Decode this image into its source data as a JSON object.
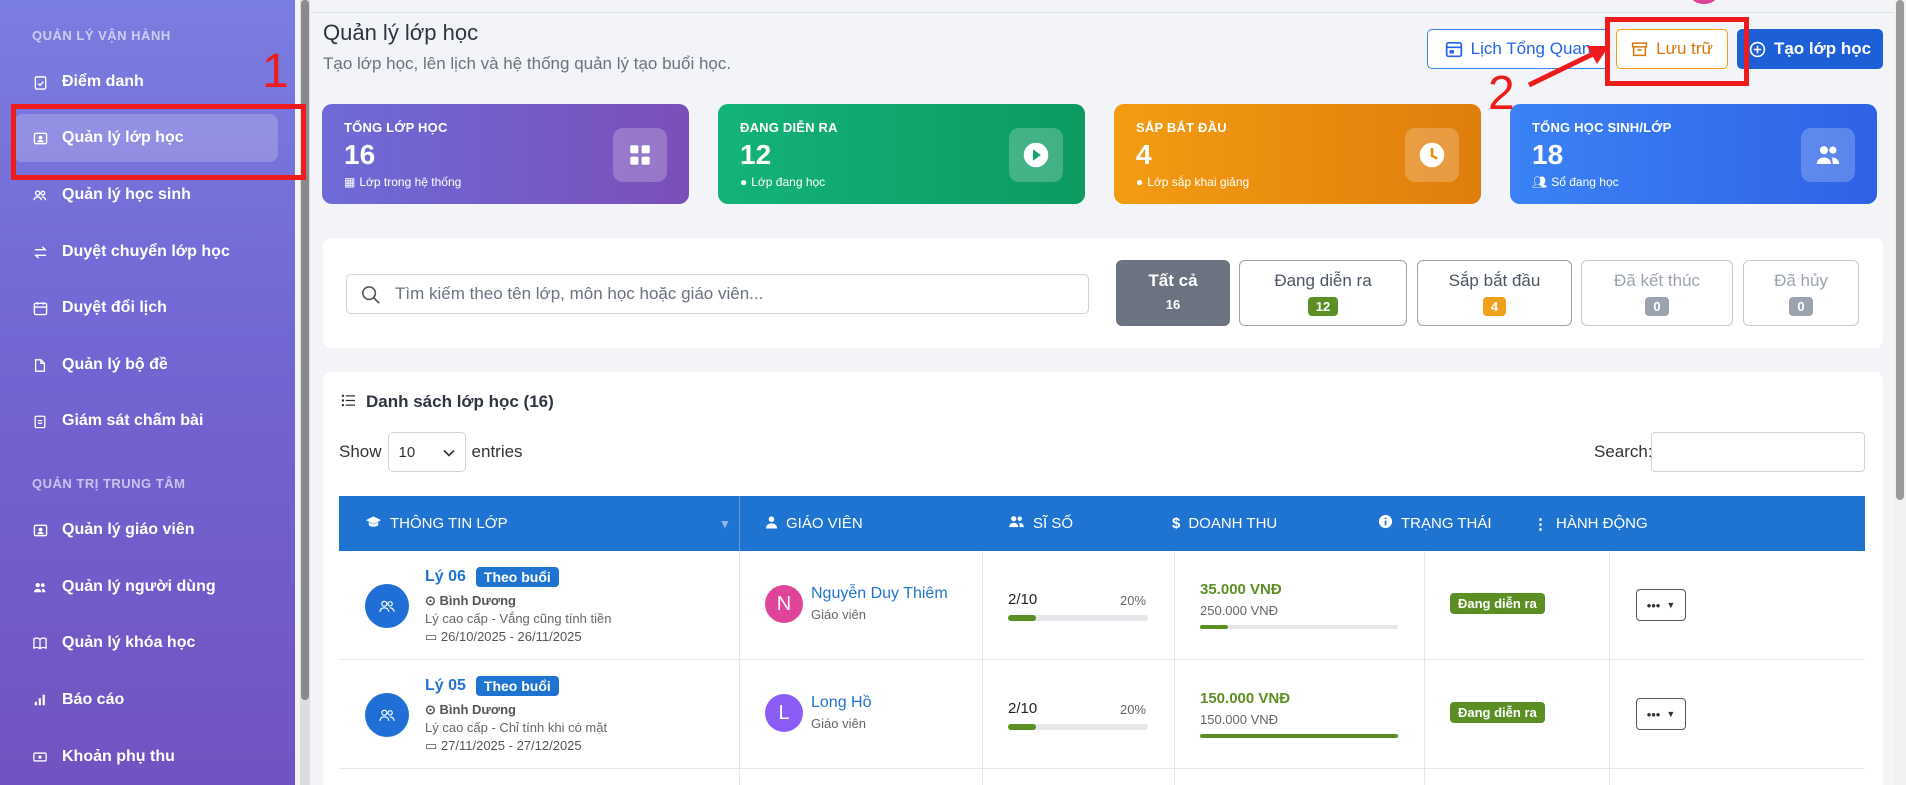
{
  "sidebar": {
    "section1": "QUẢN LÝ VẬN HÀNH",
    "section2": "QUẢN TRỊ TRUNG TÂM",
    "items": [
      {
        "label": "Điểm danh",
        "icon": "clipboard-check-icon"
      },
      {
        "label": "Quản lý lớp học",
        "icon": "id-card-icon",
        "active": true
      },
      {
        "label": "Quản lý học sinh",
        "icon": "users-icon"
      },
      {
        "label": "Duyệt chuyển lớp học",
        "icon": "exchange-icon"
      },
      {
        "label": "Duyệt đổi lịch",
        "icon": "calendar-icon"
      },
      {
        "label": "Quản lý bộ đề",
        "icon": "file-icon"
      },
      {
        "label": "Giám sát chấm bài",
        "icon": "clipboard-icon"
      },
      {
        "label": "Quản lý giáo viên",
        "icon": "id-card-icon"
      },
      {
        "label": "Quản lý người dùng",
        "icon": "users-icon"
      },
      {
        "label": "Quản lý khóa học",
        "icon": "book-icon"
      },
      {
        "label": "Báo cáo",
        "icon": "bar-chart-icon"
      },
      {
        "label": "Khoản phụ thu",
        "icon": "money-icon"
      }
    ]
  },
  "annotations": {
    "n1": "1",
    "n2": "2",
    "color": "#ee1c1c"
  },
  "header": {
    "title": "Quản lý lớp học",
    "subtitle": "Tạo lớp học, lên lịch và hệ thống quản lý tạo buổi học.",
    "btn_overview": "Lịch Tổng Quan",
    "btn_archive": "Lưu trữ",
    "btn_create": "Tạo lớp học"
  },
  "stats": [
    {
      "label": "TỔNG LỚP HỌC",
      "value": "16",
      "sub": "Lớp trong hệ thống",
      "color": "#7a5cc4"
    },
    {
      "label": "ĐANG DIỄN RA",
      "value": "12",
      "sub": "Lớp đang học",
      "color": "#10a36a"
    },
    {
      "label": "SẮP BẮT ĐẦU",
      "value": "4",
      "sub": "Lớp sắp khai giảng",
      "color": "#ec8a0c"
    },
    {
      "label": "TỔNG HỌC SINH/LỚP",
      "value": "18",
      "sub": "Sổ đang học",
      "color": "#2f6ee8"
    }
  ],
  "filters": {
    "search_placeholder": "Tìm kiếm theo tên lớp, môn học hoặc giáo viên...",
    "tabs": [
      {
        "label": "Tất cả",
        "count": "16"
      },
      {
        "label": "Đang diễn ra",
        "count": "12"
      },
      {
        "label": "Sắp bắt đầu",
        "count": "4"
      },
      {
        "label": "Đã kết thúc",
        "count": "0"
      },
      {
        "label": "Đã hủy",
        "count": "0"
      }
    ]
  },
  "list": {
    "title": "Danh sách lớp học (16)",
    "show": "Show",
    "entries": "entries",
    "page_size": "10",
    "search_label": "Search:",
    "columns": [
      "THÔNG TIN LỚP",
      "GIÁO VIÊN",
      "SĨ SỐ",
      "DOANH THU",
      "TRẠNG THÁI",
      "HÀNH ĐỘNG"
    ],
    "rows": [
      {
        "name": "Lý 06",
        "type": "Theo buổi",
        "location": "Bình Dương",
        "desc": "Lý cao cấp - Vắng cũng tính tiền",
        "dates": "26/10/2025 - 26/11/2025",
        "teacher_initial": "N",
        "teacher": "Nguyễn Duy Thiêm",
        "teacher_role": "Giáo viên",
        "avatar_color": "#e0449a",
        "enroll": "2/10",
        "enroll_pct": "20%",
        "enroll_frac": 0.2,
        "revenue": "35.000 VNĐ",
        "revenue_total": "250.000 VNĐ",
        "revenue_frac": 0.14,
        "status": "Đang diễn ra"
      },
      {
        "name": "Lý 05",
        "type": "Theo buổi",
        "location": "Bình Dương",
        "desc": "Lý cao cấp - Chỉ tính khi có mặt",
        "dates": "27/11/2025 - 27/12/2025",
        "teacher_initial": "L",
        "teacher": "Long Hồ",
        "teacher_role": "Giáo viên",
        "avatar_color": "#8b5cf6",
        "enroll": "2/10",
        "enroll_pct": "20%",
        "enroll_frac": 0.2,
        "revenue": "150.000 VNĐ",
        "revenue_total": "150.000 VNĐ",
        "revenue_frac": 1.0,
        "status": "Đang diễn ra"
      }
    ]
  }
}
